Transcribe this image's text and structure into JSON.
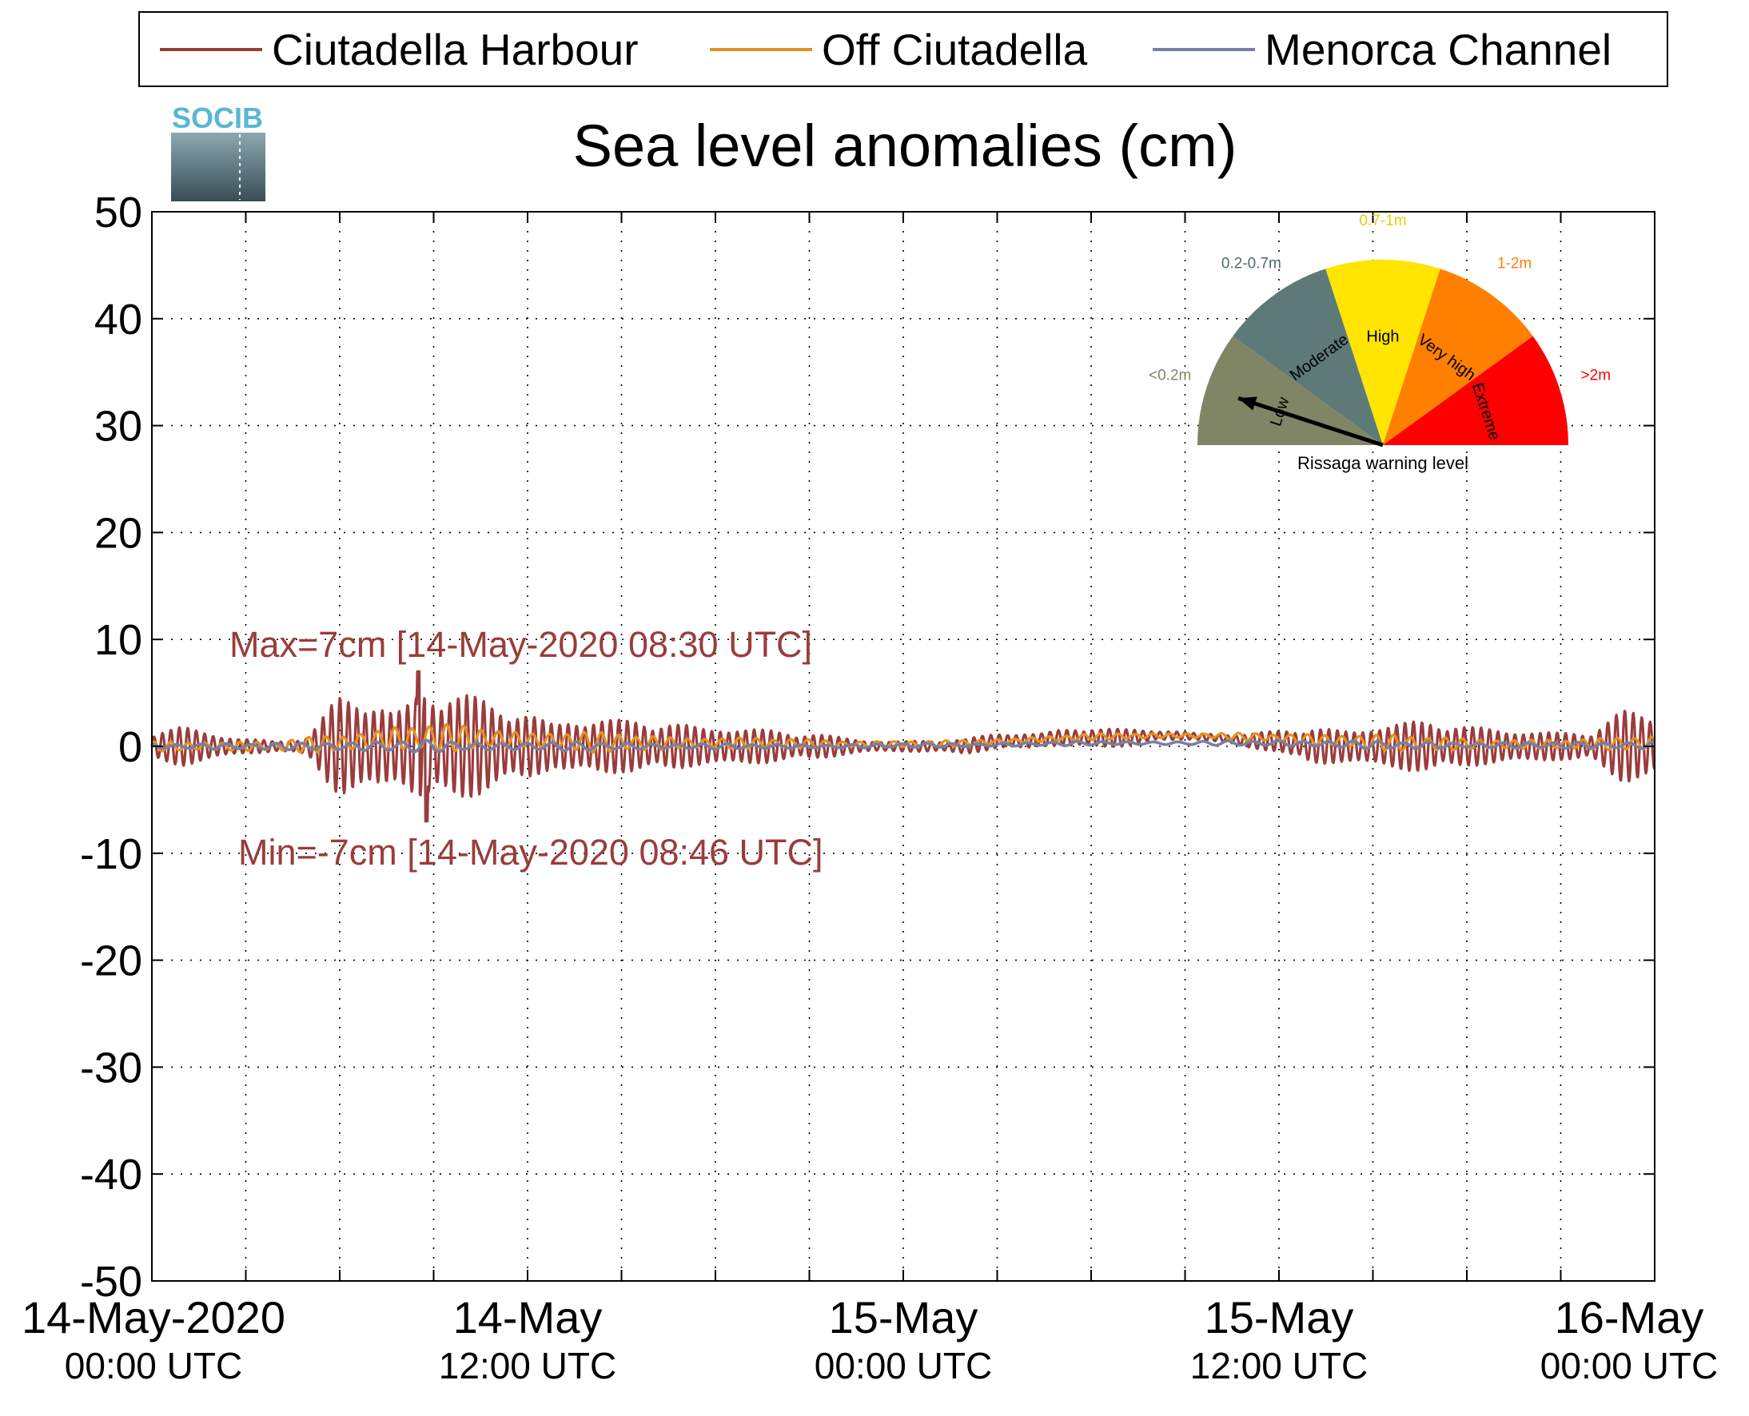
{
  "chart_data": {
    "type": "line",
    "title": "Sea level anomalies (cm)",
    "logo_text": "SOCIB",
    "xlabel": "",
    "ylabel": "",
    "xlim": [
      "2020-05-14T00:00Z",
      "2020-05-16T00:00Z"
    ],
    "ylim": [
      -50,
      50
    ],
    "y_ticks": [
      50,
      40,
      30,
      20,
      10,
      0,
      -10,
      -20,
      -30,
      -40,
      -50
    ],
    "x_tick_labels": [
      {
        "x": "2020-05-14T00:00Z",
        "line1": "14-May-2020",
        "line2": "00:00 UTC"
      },
      {
        "x": "2020-05-14T12:00Z",
        "line1": "14-May",
        "line2": "12:00 UTC"
      },
      {
        "x": "2020-05-15T00:00Z",
        "line1": "15-May",
        "line2": "00:00 UTC"
      },
      {
        "x": "2020-05-15T12:00Z",
        "line1": "15-May",
        "line2": "12:00 UTC"
      },
      {
        "x": "2020-05-16T00:00Z",
        "line1": "16-May",
        "line2": "00:00 UTC"
      }
    ],
    "x_minor_tick_hours": 3,
    "grid": true,
    "legend_position": "top",
    "series": [
      {
        "name": "Ciutadella Harbour",
        "color": "#9a3c3c",
        "x_hours": [
          0,
          1,
          2,
          3,
          4,
          5,
          6,
          7,
          8,
          8.5,
          8.77,
          9,
          10,
          11,
          12,
          13,
          14,
          15,
          16,
          17,
          18,
          19,
          20,
          21,
          22,
          23,
          24,
          25,
          26,
          27,
          28,
          29,
          30,
          31,
          32,
          33,
          34,
          35,
          36,
          37,
          38,
          39,
          40,
          41,
          42,
          43,
          44,
          45,
          46,
          47,
          48
        ],
        "envelope_cm": [
          1.5,
          2,
          1.5,
          1,
          0.5,
          1,
          5,
          5.5,
          5.5,
          6.5,
          6.5,
          6,
          5,
          4,
          4,
          3.5,
          3,
          2.5,
          2.5,
          2.5,
          2.5,
          2,
          1.5,
          1.3,
          1,
          0.7,
          0.6,
          0.6,
          0.7,
          0.8,
          1,
          1,
          1,
          0.8,
          0.6,
          0.5,
          0.5,
          0.7,
          1,
          2,
          2,
          2.5,
          2.5,
          2.5,
          2,
          2,
          2,
          1.5,
          1.5,
          3.5,
          3.5
        ],
        "offset_cm": [
          0,
          0,
          0,
          0,
          0,
          0,
          0,
          0,
          0,
          0,
          0,
          0,
          0,
          0,
          0,
          0,
          0,
          0,
          0,
          0,
          0,
          0,
          0,
          0,
          0,
          0,
          0,
          0,
          0,
          0.5,
          0.5,
          0.8,
          0.8,
          0.8,
          1,
          1,
          0.8,
          0.5,
          0.5,
          0,
          0,
          0,
          0,
          0,
          0,
          0,
          0,
          0,
          0,
          0,
          0
        ],
        "max": {
          "value": 7,
          "time": "14-May-2020 08:30 UTC"
        },
        "min": {
          "value": -7,
          "time": "14-May-2020 08:46 UTC"
        }
      },
      {
        "name": "Off Ciutadella",
        "color": "#e6911e",
        "x_hours": [
          0,
          4,
          6,
          8,
          10,
          12,
          14,
          16,
          18,
          20,
          22,
          24,
          26,
          28,
          30,
          32,
          34,
          36,
          38,
          40,
          42,
          44,
          46,
          48
        ],
        "envelope_cm": [
          0.5,
          0.5,
          1,
          1.5,
          1.2,
          1,
          1,
          0.8,
          0.6,
          0.5,
          0.4,
          0.3,
          0.3,
          0.3,
          0.3,
          0.3,
          0.3,
          0.4,
          0.8,
          0.8,
          0.6,
          0.5,
          0.5,
          1
        ],
        "offset_cm": [
          0,
          0,
          0.3,
          0.8,
          0.8,
          0.6,
          0.4,
          0.3,
          0.3,
          0.3,
          0.2,
          0.2,
          0.3,
          0.6,
          0.9,
          1,
          1,
          0.8,
          0.5,
          0.3,
          0.2,
          0.2,
          0.2,
          0.3
        ]
      },
      {
        "name": "Menorca Channel",
        "color": "#7680a6",
        "x_hours": [
          0,
          4,
          6,
          8,
          10,
          12,
          14,
          16,
          18,
          20,
          22,
          24,
          26,
          28,
          30,
          32,
          34,
          36,
          38,
          40,
          42,
          44,
          46,
          48
        ],
        "envelope_cm": [
          0.3,
          0.3,
          0.5,
          0.6,
          0.5,
          0.5,
          0.4,
          0.3,
          0.3,
          0.2,
          0.2,
          0.2,
          0.2,
          0.2,
          0.2,
          0.2,
          0.2,
          0.3,
          0.4,
          0.4,
          0.3,
          0.3,
          0.3,
          0.5
        ],
        "offset_cm": [
          0,
          0,
          0,
          0,
          0,
          0,
          0,
          0,
          0,
          0,
          0,
          0.1,
          0.1,
          0.2,
          0.3,
          0.3,
          0.3,
          0.3,
          0.2,
          0.1,
          0.1,
          0.1,
          0.1,
          0.1
        ]
      }
    ],
    "annotations": {
      "max_label": "Max=7cm [14-May-2020 08:30 UTC]",
      "min_label": "Min=-7cm [14-May-2020 08:46 UTC]",
      "color": "#9a3c3c"
    },
    "warning_gauge": {
      "title": "Rissaga warning level",
      "current_level": "Low",
      "sectors": [
        {
          "name": "Low",
          "range_label": "<0.2m",
          "color": "#808566",
          "label_color": "#808566"
        },
        {
          "name": "Moderate",
          "range_label": "0.2-0.7m",
          "color": "#5d7a78",
          "label_color": "#4f6b6b"
        },
        {
          "name": "High",
          "range_label": "0.7-1m",
          "color": "#ffe500",
          "label_color": "#e6cf00"
        },
        {
          "name": "Very high",
          "range_label": "1-2m",
          "color": "#ff8000",
          "label_color": "#ff8000"
        },
        {
          "name": "Extreme",
          "range_label": ">2m",
          "color": "#ff0000",
          "label_color": "#ff0000"
        }
      ]
    }
  }
}
